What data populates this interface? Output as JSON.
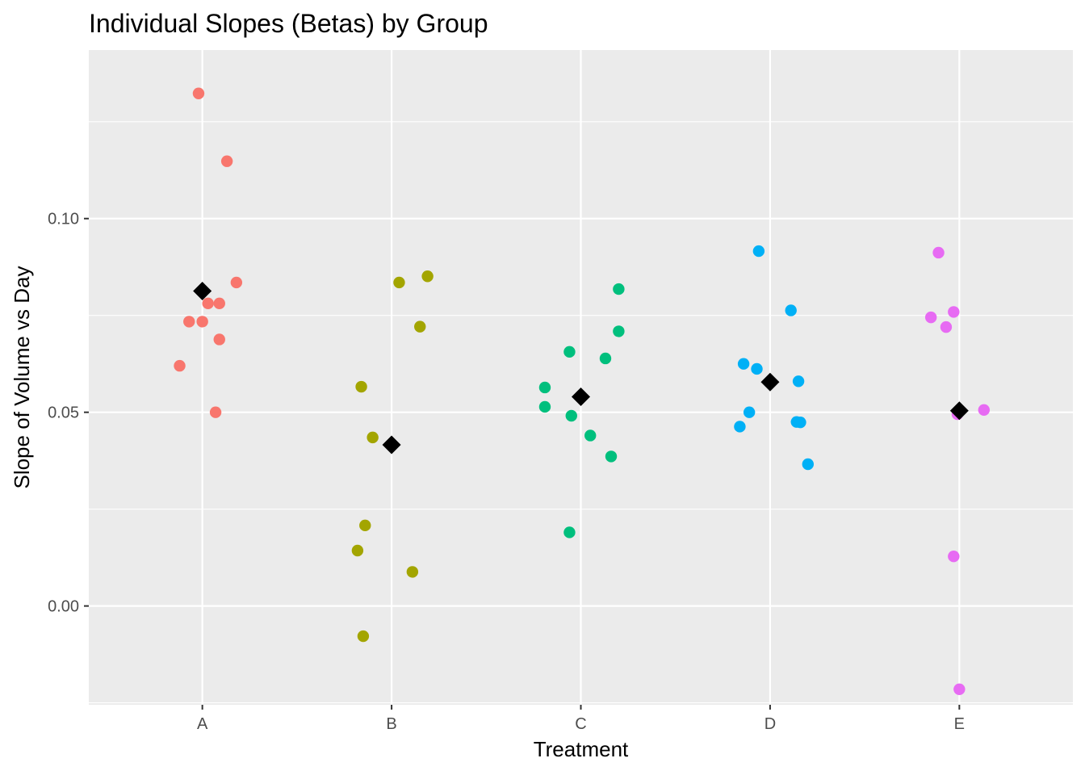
{
  "chart_data": {
    "type": "scatter",
    "title": "Individual Slopes (Betas) by Group",
    "xlabel": "Treatment",
    "ylabel": "Slope of Volume vs Day",
    "categories": [
      "A",
      "B",
      "C",
      "D",
      "E"
    ],
    "ylim": [
      -0.0255,
      0.1435
    ],
    "y_ticks": [
      0.0,
      0.05,
      0.1
    ],
    "y_tick_labels": [
      "0.00",
      "0.05",
      "0.10"
    ],
    "grid": true,
    "legend": "none",
    "colors": {
      "panel_bg": "#ebebeb",
      "grid": "#ffffff",
      "mean_marker": "#000000",
      "A": "#f8766d",
      "B": "#a3a500",
      "C": "#00bf7d",
      "D": "#00b0f6",
      "E": "#e76bf3"
    },
    "series": [
      {
        "category": "A",
        "mean": 0.0813,
        "points": [
          {
            "x": -0.02,
            "y": 0.1323
          },
          {
            "x": 0.13,
            "y": 0.1148
          },
          {
            "x": 0.18,
            "y": 0.0835
          },
          {
            "x": 0.03,
            "y": 0.0781
          },
          {
            "x": 0.09,
            "y": 0.0781
          },
          {
            "x": -0.07,
            "y": 0.0734
          },
          {
            "x": 0.0,
            "y": 0.0734
          },
          {
            "x": 0.09,
            "y": 0.0688
          },
          {
            "x": -0.12,
            "y": 0.062
          },
          {
            "x": 0.07,
            "y": 0.05
          }
        ]
      },
      {
        "category": "B",
        "mean": 0.0416,
        "points": [
          {
            "x": 0.19,
            "y": 0.0851
          },
          {
            "x": 0.04,
            "y": 0.0835
          },
          {
            "x": 0.15,
            "y": 0.0721
          },
          {
            "x": -0.16,
            "y": 0.0566
          },
          {
            "x": -0.1,
            "y": 0.0435
          },
          {
            "x": -0.14,
            "y": 0.0208
          },
          {
            "x": -0.18,
            "y": 0.0143
          },
          {
            "x": 0.11,
            "y": 0.0088
          },
          {
            "x": -0.15,
            "y": -0.0078
          }
        ]
      },
      {
        "category": "C",
        "mean": 0.054,
        "points": [
          {
            "x": 0.2,
            "y": 0.0818
          },
          {
            "x": 0.2,
            "y": 0.0709
          },
          {
            "x": -0.06,
            "y": 0.0656
          },
          {
            "x": 0.13,
            "y": 0.0639
          },
          {
            "x": -0.19,
            "y": 0.0564
          },
          {
            "x": -0.19,
            "y": 0.0514
          },
          {
            "x": -0.05,
            "y": 0.0491
          },
          {
            "x": 0.05,
            "y": 0.044
          },
          {
            "x": 0.16,
            "y": 0.0386
          },
          {
            "x": -0.06,
            "y": 0.019
          }
        ]
      },
      {
        "category": "D",
        "mean": 0.0578,
        "points": [
          {
            "x": -0.06,
            "y": 0.0916
          },
          {
            "x": 0.11,
            "y": 0.0763
          },
          {
            "x": -0.14,
            "y": 0.0625
          },
          {
            "x": -0.07,
            "y": 0.0612
          },
          {
            "x": 0.15,
            "y": 0.058
          },
          {
            "x": -0.11,
            "y": 0.05
          },
          {
            "x": 0.14,
            "y": 0.0475
          },
          {
            "x": 0.16,
            "y": 0.0474
          },
          {
            "x": -0.16,
            "y": 0.0463
          },
          {
            "x": 0.2,
            "y": 0.0366
          }
        ]
      },
      {
        "category": "E",
        "mean": 0.0504,
        "points": [
          {
            "x": -0.11,
            "y": 0.0912
          },
          {
            "x": -0.03,
            "y": 0.0759
          },
          {
            "x": -0.15,
            "y": 0.0745
          },
          {
            "x": -0.07,
            "y": 0.072
          },
          {
            "x": 0.13,
            "y": 0.0506
          },
          {
            "x": -0.01,
            "y": 0.0495
          },
          {
            "x": -0.03,
            "y": 0.0128
          },
          {
            "x": 0.0,
            "y": -0.0215
          }
        ]
      }
    ]
  }
}
